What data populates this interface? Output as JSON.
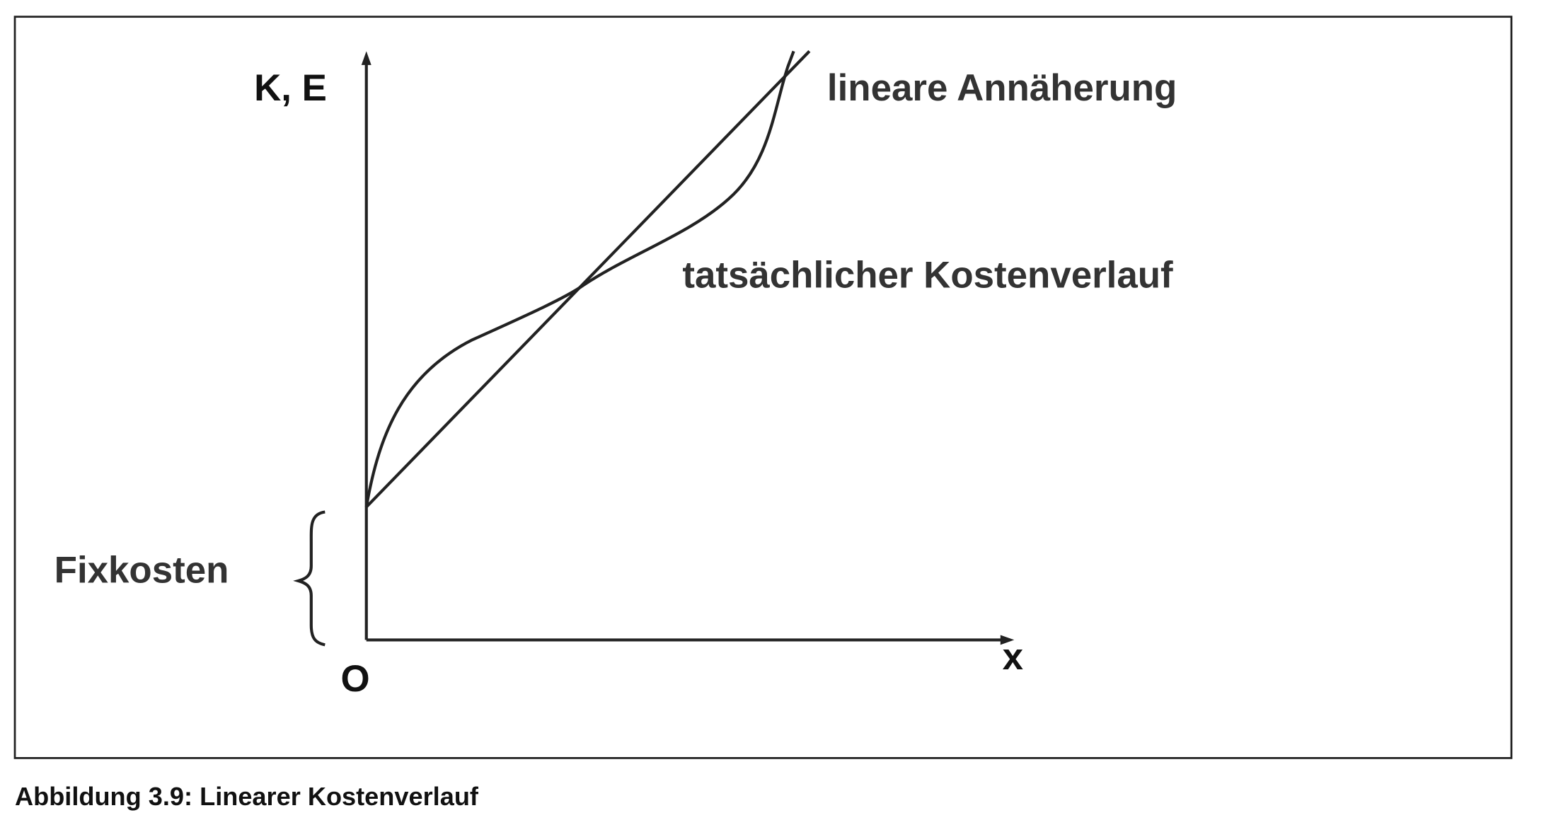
{
  "axes": {
    "y_label": "K, E",
    "x_label": "x",
    "origin": "O"
  },
  "annotations": {
    "linear": "lineare Annäherung",
    "actual": "tatsächlicher Kostenverlauf",
    "fixed": "Fixkosten"
  },
  "caption": "Abbildung 3.9: Linearer Kostenverlauf"
}
